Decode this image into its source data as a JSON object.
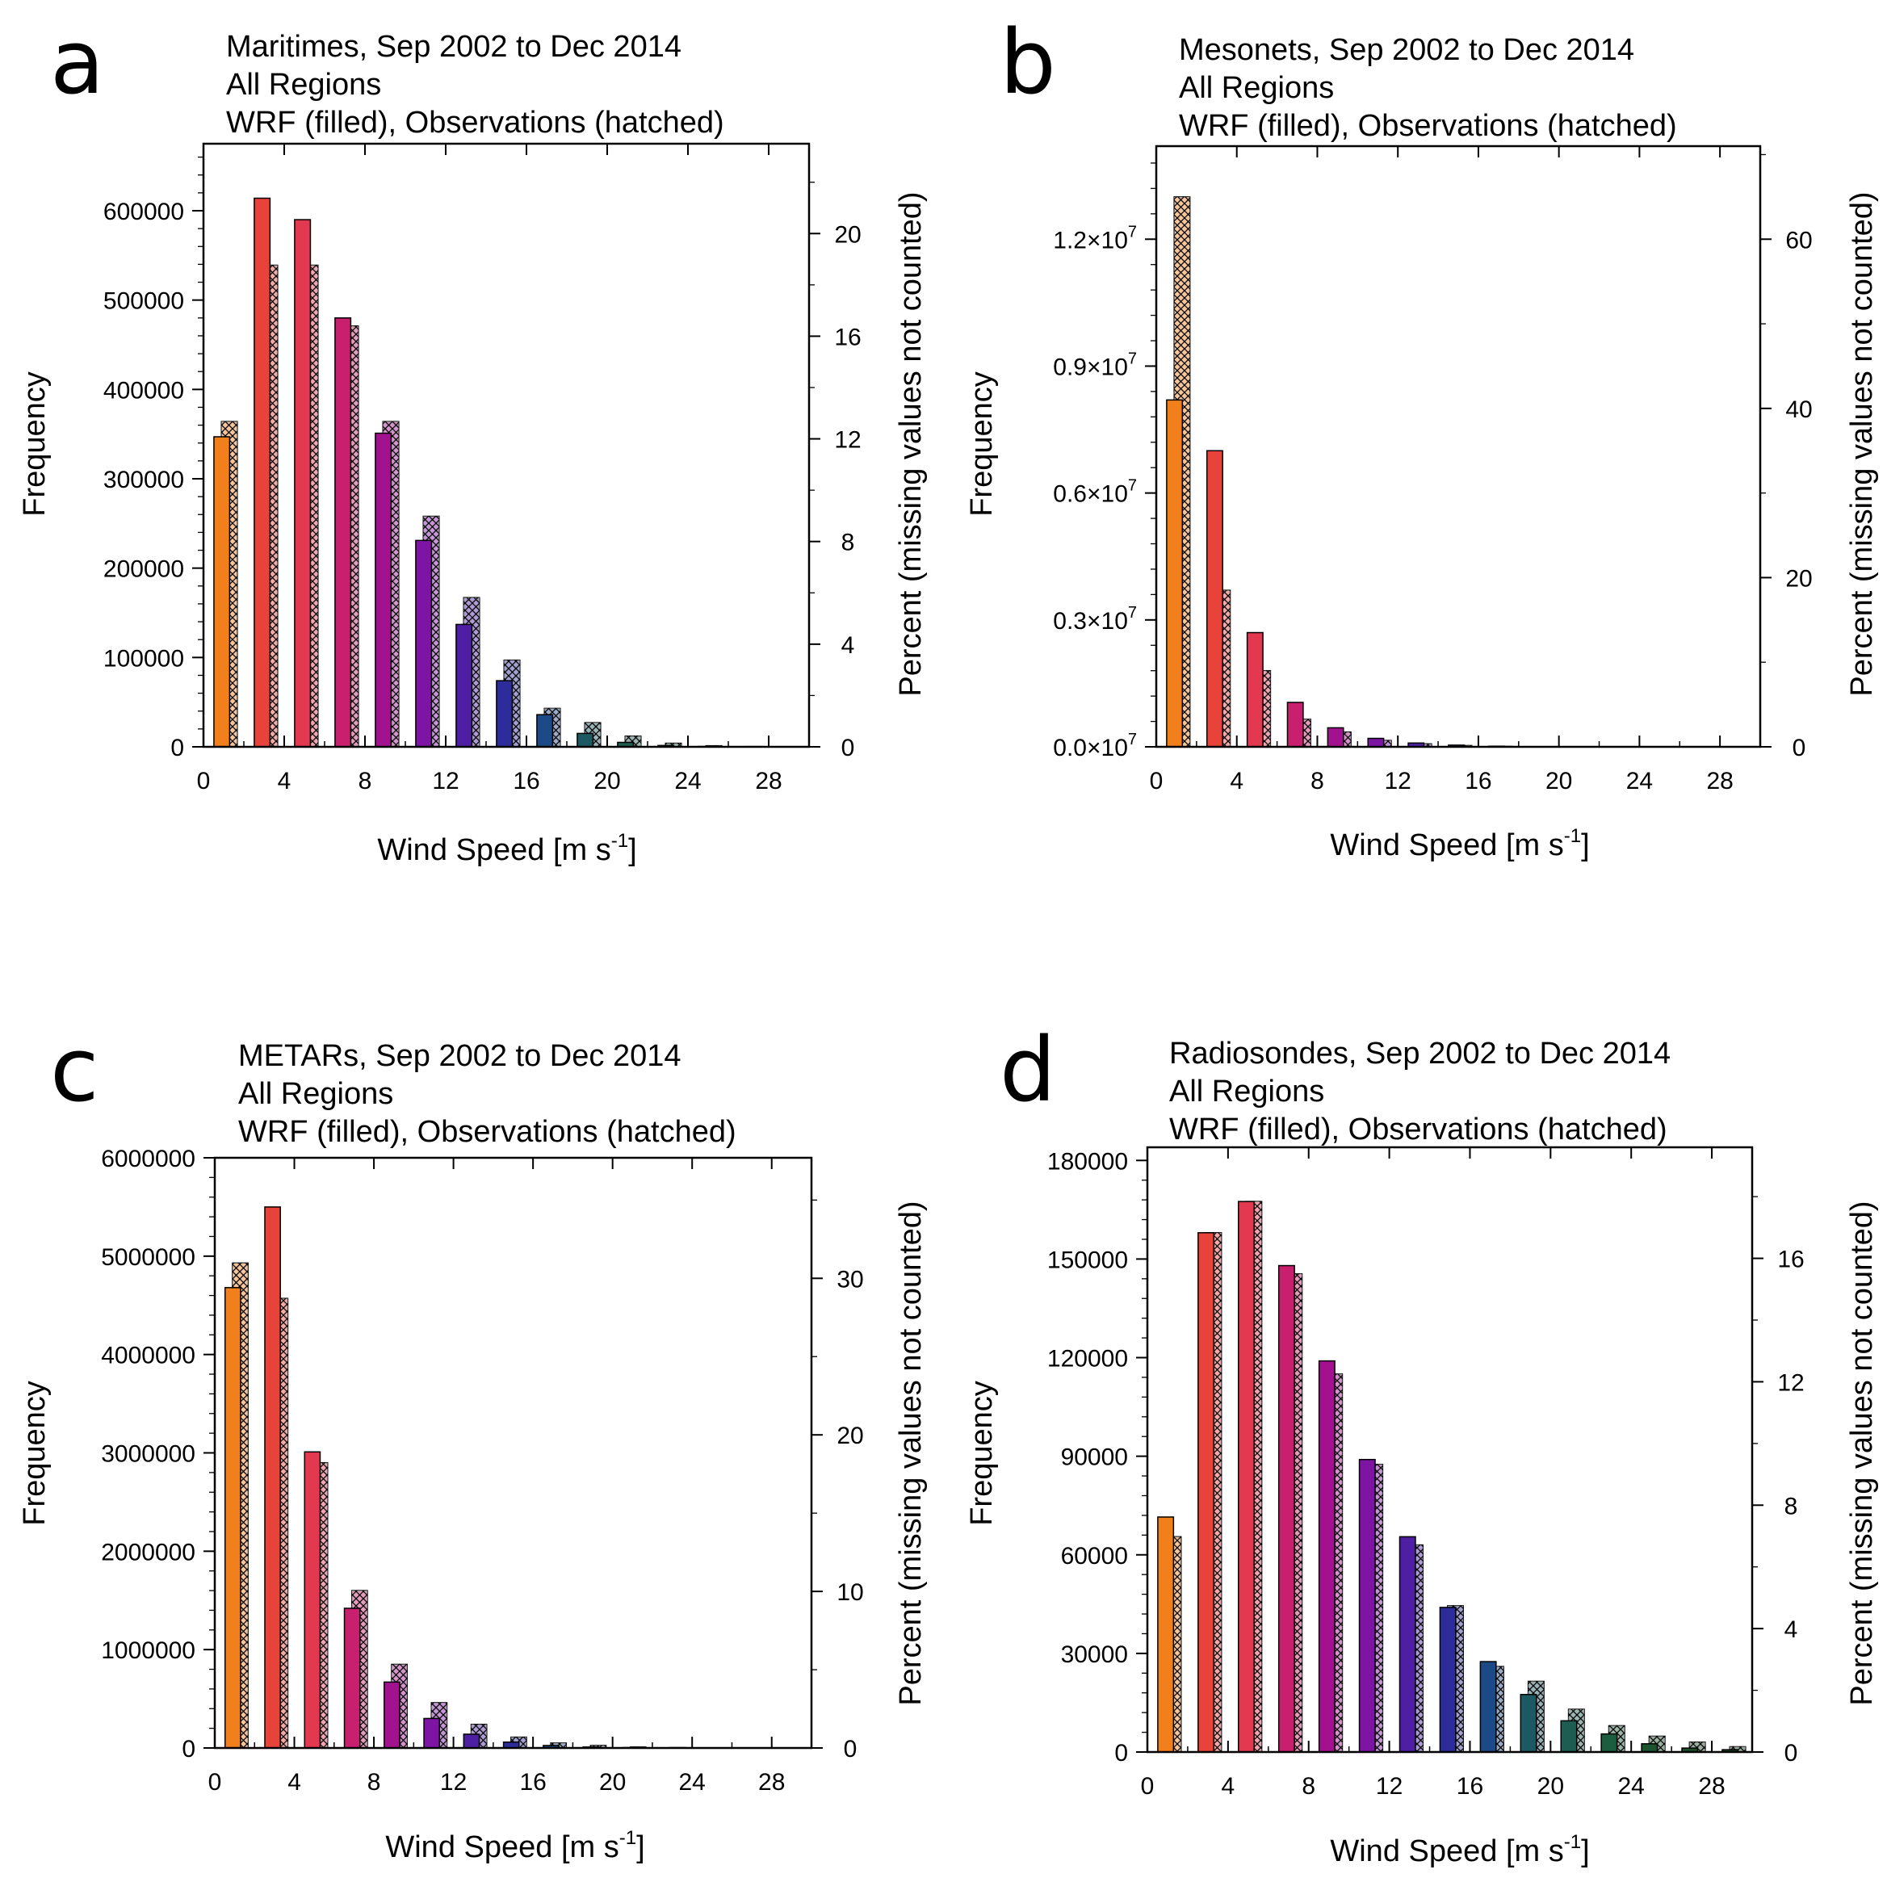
{
  "chart_data": [
    {
      "type": "bar",
      "panel_label": "a",
      "title": "Maritimes, Sep 2002 to Dec 2014",
      "subtitle": "All Regions",
      "subtitle2": "WRF (filled), Observations (hatched)",
      "xlabel": "Wind Speed [m s",
      "xlabel_sup": "-1",
      "xlabel_end": "]",
      "ylabel": "Frequency",
      "ylabel_right": "Percent (missing values not counted)",
      "xlim": [
        0,
        30
      ],
      "ylim": [
        0,
        675000
      ],
      "y2lim": [
        0,
        23.5
      ],
      "xticks": [
        0,
        4,
        8,
        12,
        16,
        20,
        24,
        28
      ],
      "yticks": [
        0,
        100000,
        200000,
        300000,
        400000,
        500000,
        600000
      ],
      "ytick_labels": [
        "0",
        "100000",
        "200000",
        "300000",
        "400000",
        "500000",
        "600000"
      ],
      "y2ticks": [
        0,
        4,
        8,
        12,
        16,
        20
      ],
      "y2tick_labels": [
        "0",
        "4",
        "8",
        "12",
        "16",
        "20"
      ],
      "categories": [
        "1",
        "3",
        "5",
        "7",
        "9",
        "11",
        "13",
        "15",
        "17",
        "19",
        "21",
        "23",
        "25",
        "27",
        "29"
      ],
      "series": [
        {
          "name": "WRF (filled)",
          "values": [
            347000,
            614000,
            590000,
            480000,
            351000,
            231000,
            137000,
            74000,
            36000,
            15000,
            5000,
            1500,
            400,
            100,
            50
          ]
        },
        {
          "name": "Observations (hatched)",
          "values": [
            364000,
            539000,
            539000,
            471000,
            364000,
            258000,
            167000,
            97000,
            43000,
            27000,
            12000,
            4000,
            1200,
            300,
            100
          ]
        }
      ]
    },
    {
      "type": "bar",
      "panel_label": "b",
      "title": "Mesonets, Sep 2002 to Dec 2014",
      "subtitle": "All Regions",
      "subtitle2": "WRF (filled), Observations (hatched)",
      "xlabel": "Wind Speed [m s",
      "xlabel_sup": "-1",
      "xlabel_end": "]",
      "ylabel": "Frequency",
      "ylabel_right": "Percent (missing values not counted)",
      "xlim": [
        0,
        30
      ],
      "ylim": [
        0,
        14200000
      ],
      "y2lim": [
        0,
        71
      ],
      "xticks": [
        0,
        4,
        8,
        12,
        16,
        20,
        24,
        28
      ],
      "yticks": [
        0,
        3000000,
        6000000,
        9000000,
        12000000
      ],
      "ytick_labels": [
        "0.0",
        "0.3",
        "0.6",
        "0.9",
        "1.2"
      ],
      "ytick_suffix": "×10",
      "ytick_exp": "7",
      "y2ticks": [
        0,
        20,
        40,
        60
      ],
      "y2tick_labels": [
        "0",
        "20",
        "40",
        "60"
      ],
      "categories": [
        "1",
        "3",
        "5",
        "7",
        "9",
        "11",
        "13",
        "15",
        "17",
        "19",
        "21",
        "23",
        "25",
        "27",
        "29"
      ],
      "series": [
        {
          "name": "WRF (filled)",
          "values": [
            8200000,
            7000000,
            2700000,
            1050000,
            450000,
            200000,
            90000,
            40000,
            15000,
            5000,
            2000,
            800,
            300,
            100,
            50
          ]
        },
        {
          "name": "Observations (hatched)",
          "values": [
            13000000,
            3700000,
            1800000,
            650000,
            350000,
            150000,
            70000,
            30000,
            10000,
            4000,
            1500,
            600,
            200,
            80,
            30
          ]
        }
      ]
    },
    {
      "type": "bar",
      "panel_label": "c",
      "title": "METARs, Sep 2002 to Dec 2014",
      "subtitle": "All Regions",
      "subtitle2": "WRF (filled), Observations (hatched)",
      "xlabel": "Wind Speed [m s",
      "xlabel_sup": "-1",
      "xlabel_end": "]",
      "ylabel": "Frequency",
      "ylabel_right": "Percent (missing values not counted)",
      "xlim": [
        0,
        30
      ],
      "ylim": [
        0,
        6000000
      ],
      "y2lim": [
        0,
        37.7
      ],
      "xticks": [
        0,
        4,
        8,
        12,
        16,
        20,
        24,
        28
      ],
      "yticks": [
        0,
        1000000,
        2000000,
        3000000,
        4000000,
        5000000,
        6000000
      ],
      "ytick_labels": [
        "0",
        "1000000",
        "2000000",
        "3000000",
        "4000000",
        "5000000",
        "6000000"
      ],
      "y2ticks": [
        0,
        10,
        20,
        30
      ],
      "y2tick_labels": [
        "0",
        "10",
        "20",
        "30"
      ],
      "categories": [
        "1",
        "3",
        "5",
        "7",
        "9",
        "11",
        "13",
        "15",
        "17",
        "19",
        "21",
        "23",
        "25",
        "27",
        "29"
      ],
      "series": [
        {
          "name": "WRF (filled)",
          "values": [
            4680000,
            5500000,
            3010000,
            1420000,
            670000,
            300000,
            140000,
            60000,
            25000,
            10000,
            4000,
            1500,
            500,
            200,
            100
          ]
        },
        {
          "name": "Observations (hatched)",
          "values": [
            4930000,
            4570000,
            2900000,
            1600000,
            850000,
            460000,
            240000,
            110000,
            50000,
            25000,
            10000,
            4000,
            1500,
            500,
            200
          ]
        }
      ]
    },
    {
      "type": "bar",
      "panel_label": "d",
      "title": "Radiosondes, Sep 2002 to Dec 2014",
      "subtitle": "All Regions",
      "subtitle2": "WRF (filled), Observations (hatched)",
      "xlabel": "Wind Speed [m s",
      "xlabel_sup": "-1",
      "xlabel_end": "]",
      "ylabel": "Frequency",
      "ylabel_right": "Percent (missing values not counted)",
      "xlim": [
        0,
        30
      ],
      "ylim": [
        0,
        184000
      ],
      "y2lim": [
        0,
        19.6
      ],
      "xticks": [
        0,
        4,
        8,
        12,
        16,
        20,
        24,
        28
      ],
      "yticks": [
        0,
        30000,
        60000,
        90000,
        120000,
        150000,
        180000
      ],
      "ytick_labels": [
        "0",
        "30000",
        "60000",
        "90000",
        "120000",
        "150000",
        "180000"
      ],
      "y2ticks": [
        0,
        4,
        8,
        12,
        16
      ],
      "y2tick_labels": [
        "0",
        "4",
        "8",
        "12",
        "16"
      ],
      "categories": [
        "1",
        "3",
        "5",
        "7",
        "9",
        "11",
        "13",
        "15",
        "17",
        "19",
        "21",
        "23",
        "25",
        "27",
        "29"
      ],
      "series": [
        {
          "name": "WRF (filled)",
          "values": [
            71500,
            158000,
            167500,
            148000,
            119000,
            89000,
            65500,
            44000,
            27500,
            17500,
            9500,
            5500,
            2500,
            1200,
            700
          ]
        },
        {
          "name": "Observations (hatched)",
          "values": [
            65500,
            158000,
            167500,
            145500,
            115000,
            87500,
            63000,
            44500,
            26000,
            21500,
            13000,
            8000,
            4800,
            3000,
            1600
          ]
        }
      ]
    }
  ],
  "bar_colors": [
    "#f07f1c",
    "#e8433a",
    "#e23850",
    "#c81f6e",
    "#a3128e",
    "#7e14a3",
    "#4e1ea3",
    "#2d2d99",
    "#1c4a86",
    "#1d5963",
    "#1e5e52",
    "#1d5d3f",
    "#1a552f",
    "#1a4e2a",
    "#1a4a28"
  ]
}
